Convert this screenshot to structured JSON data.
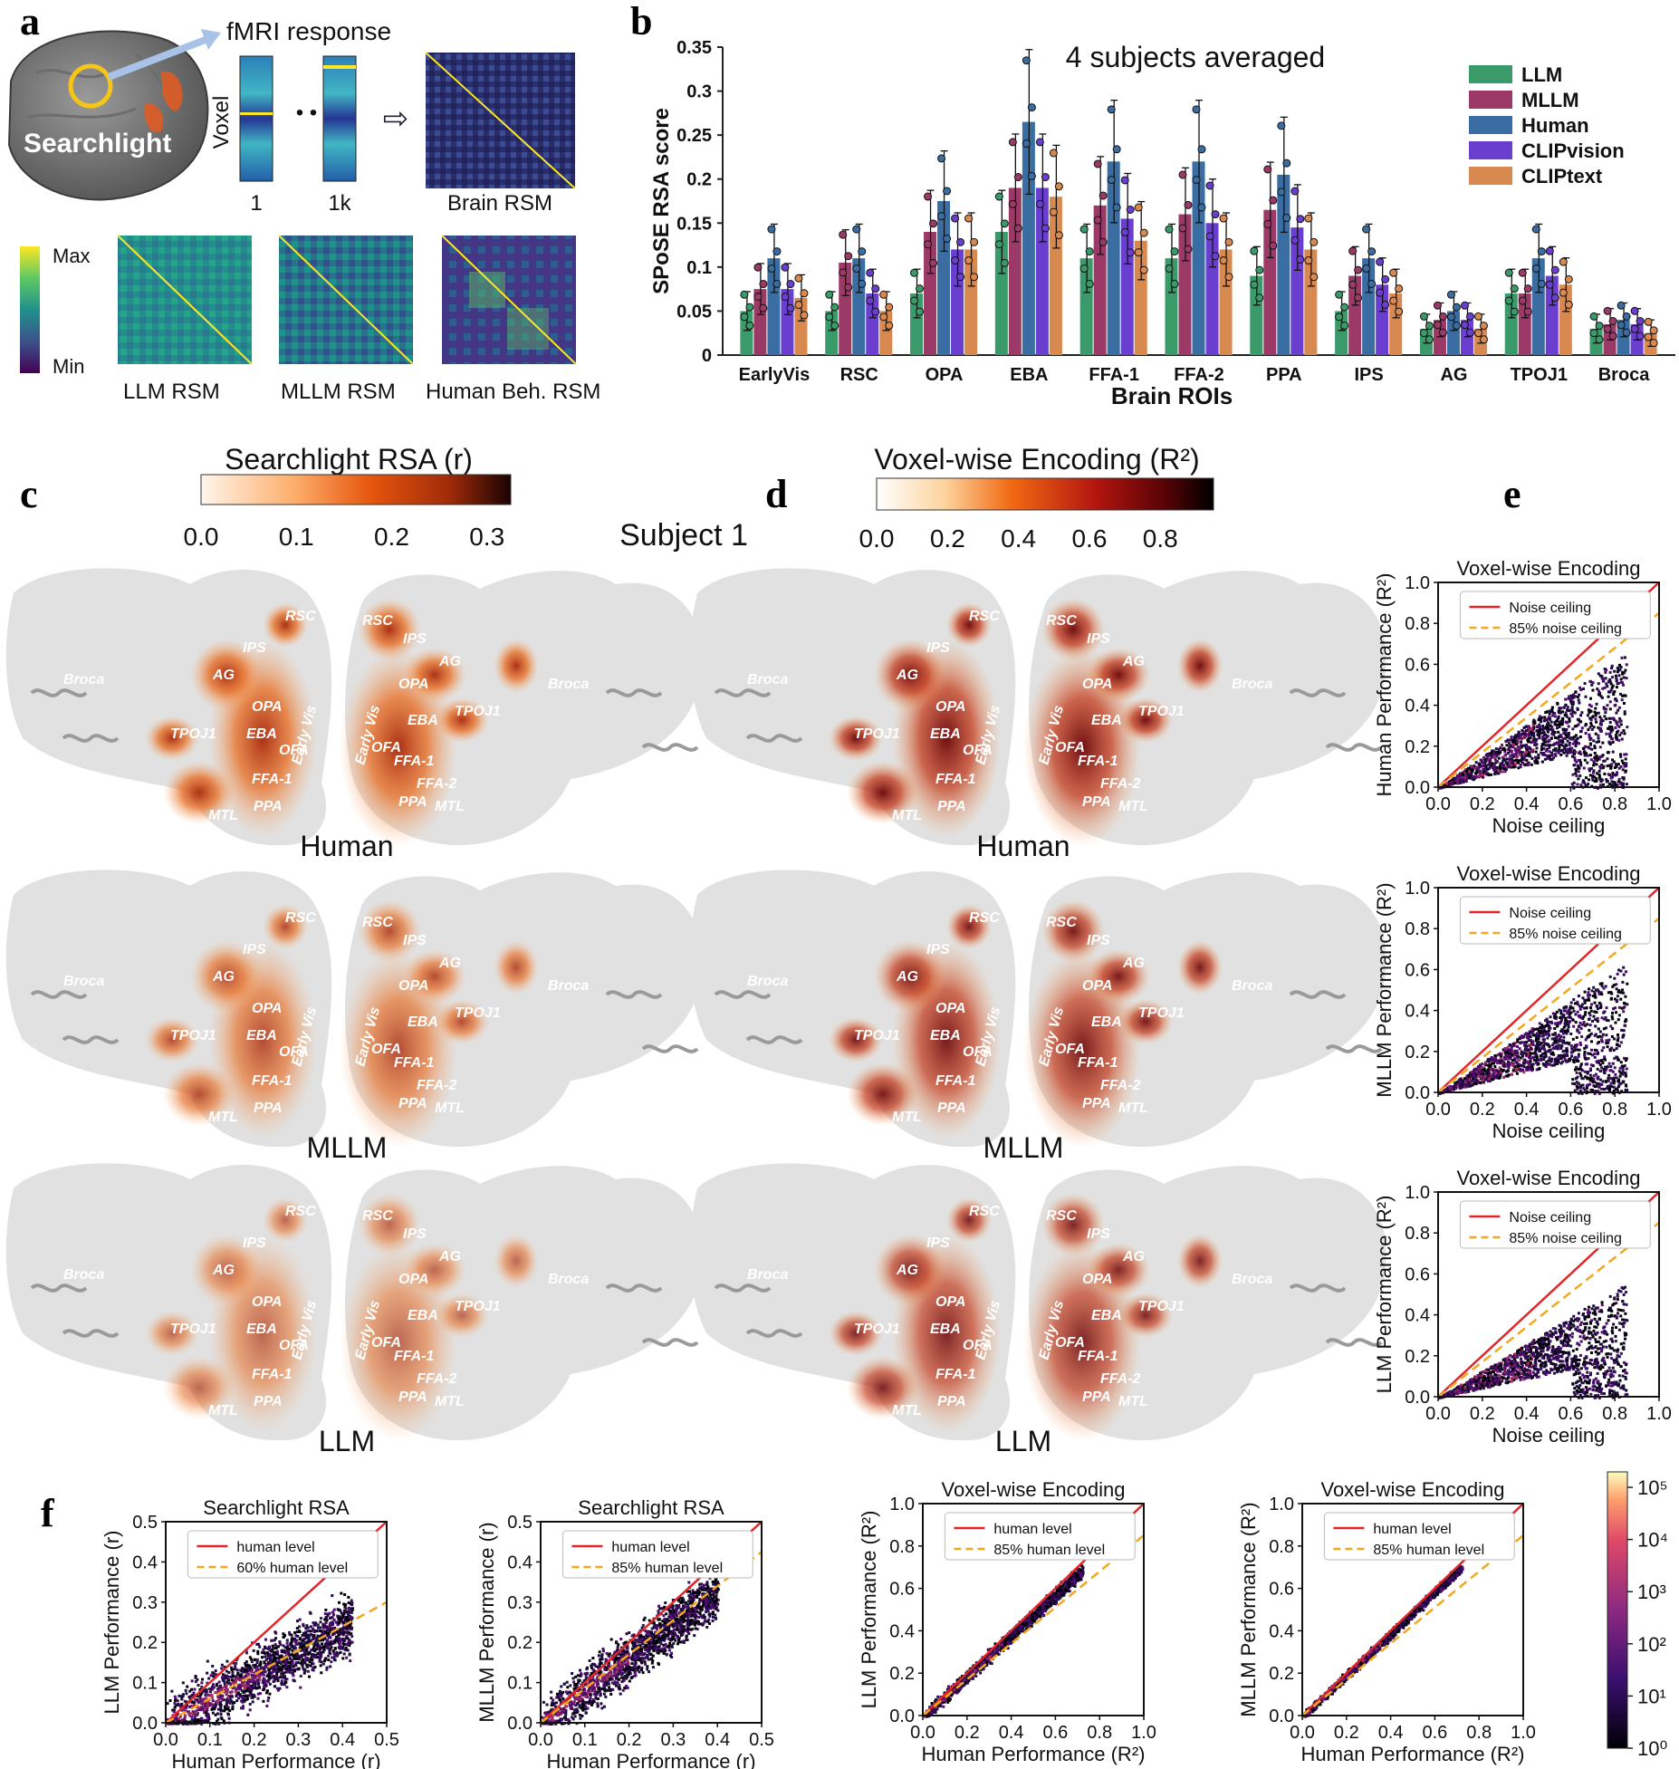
{
  "panels": {
    "a": {
      "letter": "a",
      "fmri_label": "fMRI response",
      "searchlight_label": "Searchlight",
      "voxel_label": "Voxel",
      "col_first": "1",
      "col_last": "1k",
      "dots": "• • •",
      "arrow": "⇨",
      "brain_rsm": "Brain RSM",
      "llm_rsm": "LLM RSM",
      "mllm_rsm": "MLLM RSM",
      "human_rsm": "Human Beh. RSM",
      "cbar_max": "Max",
      "cbar_min": "Min"
    },
    "b": {
      "letter": "b"
    },
    "c": {
      "letter": "c",
      "cbar_title": "Searchlight RSA (r)",
      "cbar_ticks": [
        "0.0",
        "0.1",
        "0.2",
        "0.3"
      ],
      "row_labels": [
        "Human",
        "MLLM",
        "LLM"
      ]
    },
    "subject_label": "Subject 1",
    "d": {
      "letter": "d",
      "cbar_title": "Voxel-wise Encoding (R²)",
      "cbar_ticks": [
        "0.0",
        "0.2",
        "0.4",
        "0.6",
        "0.8"
      ],
      "row_labels": [
        "Human",
        "MLLM",
        "LLM"
      ]
    },
    "e": {
      "letter": "e"
    },
    "f": {
      "letter": "f",
      "density_cbar_ticks": [
        "10⁵",
        "10⁴",
        "10³",
        "10²",
        "10¹",
        "10⁰"
      ]
    }
  },
  "brain_rois": {
    "left": [
      "Broca",
      "IPS",
      "RSC",
      "AG",
      "OPA",
      "TPOJ1",
      "EBA",
      "OFA",
      "Early Vis",
      "FFA-1",
      "MTL",
      "PPA"
    ],
    "right": [
      "RSC",
      "IPS",
      "AG",
      "OPA",
      "TPOJ1",
      "EBA",
      "Early Vis",
      "OFA",
      "FFA-1",
      "FFA-2",
      "PPA",
      "MTL",
      "Broca"
    ]
  },
  "colors": {
    "LLM": "#3a9a6a",
    "MLLM": "#9b3a66",
    "Human": "#3a6ea2",
    "CLIPvision": "#6a3fd0",
    "CLIPtext": "#d8894f",
    "noise_ceiling": "#e0262a",
    "dashed": "#f2a81e"
  },
  "chart_data": [
    {
      "type": "bar",
      "id": "b",
      "title": "4 subjects averaged",
      "xlabel": "Brain ROIs",
      "ylabel": "SPoSE RSA score",
      "ylim": [
        0,
        0.35
      ],
      "yticks": [
        "0",
        "0.05",
        "0.1",
        "0.15",
        "0.2",
        "0.25",
        "0.3",
        "0.35"
      ],
      "legend_position": "top-right",
      "categories": [
        "EarlyVis",
        "RSC",
        "OPA",
        "EBA",
        "FFA-1",
        "FFA-2",
        "PPA",
        "IPS",
        "AG",
        "TPOJ1",
        "Broca"
      ],
      "series": [
        {
          "name": "LLM",
          "values": [
            0.05,
            0.05,
            0.07,
            0.14,
            0.11,
            0.11,
            0.09,
            0.05,
            0.03,
            0.07,
            0.03
          ]
        },
        {
          "name": "MLLM",
          "values": [
            0.075,
            0.105,
            0.14,
            0.19,
            0.17,
            0.16,
            0.165,
            0.09,
            0.04,
            0.07,
            0.035
          ]
        },
        {
          "name": "Human",
          "values": [
            0.11,
            0.11,
            0.175,
            0.265,
            0.22,
            0.22,
            0.205,
            0.11,
            0.05,
            0.11,
            0.04
          ]
        },
        {
          "name": "CLIPvision",
          "values": [
            0.075,
            0.07,
            0.12,
            0.19,
            0.155,
            0.15,
            0.145,
            0.08,
            0.04,
            0.09,
            0.035
          ]
        },
        {
          "name": "CLIPtext",
          "values": [
            0.065,
            0.05,
            0.12,
            0.18,
            0.13,
            0.12,
            0.12,
            0.07,
            0.03,
            0.08,
            0.025
          ]
        }
      ]
    },
    {
      "type": "scatter",
      "id": "e1",
      "title": "Voxel-wise Encoding",
      "xlabel": "Noise ceiling",
      "ylabel": "Human Performance (R²)",
      "xlim": [
        0,
        1
      ],
      "ylim": [
        0,
        1
      ],
      "xticks": [
        "0.0",
        "0.2",
        "0.4",
        "0.6",
        "0.8",
        "1.0"
      ],
      "yticks": [
        "0.0",
        "0.2",
        "0.4",
        "0.6",
        "0.8",
        "1.0"
      ],
      "lines": [
        {
          "name": "Noise ceiling",
          "slope": 1.0
        },
        {
          "name": "85% noise ceiling",
          "slope": 0.85
        }
      ],
      "cloud": {
        "slope": 0.78,
        "spread": 0.12,
        "xmax": 0.85
      }
    },
    {
      "type": "scatter",
      "id": "e2",
      "title": "Voxel-wise Encoding",
      "xlabel": "Noise ceiling",
      "ylabel": "MLLM Performance (R²)",
      "xlim": [
        0,
        1
      ],
      "ylim": [
        0,
        1
      ],
      "xticks": [
        "0.0",
        "0.2",
        "0.4",
        "0.6",
        "0.8",
        "1.0"
      ],
      "yticks": [
        "0.0",
        "0.2",
        "0.4",
        "0.6",
        "0.8",
        "1.0"
      ],
      "lines": [
        {
          "name": "Noise ceiling",
          "slope": 1.0
        },
        {
          "name": "85% noise ceiling",
          "slope": 0.85
        }
      ],
      "cloud": {
        "slope": 0.76,
        "spread": 0.12,
        "xmax": 0.85
      }
    },
    {
      "type": "scatter",
      "id": "e3",
      "title": "Voxel-wise Encoding",
      "xlabel": "Noise ceiling",
      "ylabel": "LLM Performance (R²)",
      "xlim": [
        0,
        1
      ],
      "ylim": [
        0,
        1
      ],
      "xticks": [
        "0.0",
        "0.2",
        "0.4",
        "0.6",
        "0.8",
        "1.0"
      ],
      "yticks": [
        "0.0",
        "0.2",
        "0.4",
        "0.6",
        "0.8",
        "1.0"
      ],
      "lines": [
        {
          "name": "Noise ceiling",
          "slope": 1.0
        },
        {
          "name": "85% noise ceiling",
          "slope": 0.85
        }
      ],
      "cloud": {
        "slope": 0.66,
        "spread": 0.12,
        "xmax": 0.85
      }
    },
    {
      "type": "scatter",
      "id": "f1",
      "title": "Searchlight RSA",
      "xlabel": "Human Performance (r)",
      "ylabel": "LLM Performance (r)",
      "xlim": [
        0,
        0.5
      ],
      "ylim": [
        0,
        0.5
      ],
      "xticks": [
        "0.0",
        "0.1",
        "0.2",
        "0.3",
        "0.4",
        "0.5"
      ],
      "yticks": [
        "0.0",
        "0.1",
        "0.2",
        "0.3",
        "0.4",
        "0.5"
      ],
      "lines": [
        {
          "name": "human level",
          "slope": 1.0
        },
        {
          "name": "60% human level",
          "slope": 0.6
        }
      ],
      "cloud": {
        "slope": 0.6,
        "spread": 0.035,
        "xmax": 0.42
      }
    },
    {
      "type": "scatter",
      "id": "f2",
      "title": "Searchlight RSA",
      "xlabel": "Human Performance (r)",
      "ylabel": "MLLM Performance (r)",
      "xlim": [
        0,
        0.5
      ],
      "ylim": [
        0,
        0.5
      ],
      "xticks": [
        "0.0",
        "0.1",
        "0.2",
        "0.3",
        "0.4",
        "0.5"
      ],
      "yticks": [
        "0.0",
        "0.1",
        "0.2",
        "0.3",
        "0.4",
        "0.5"
      ],
      "lines": [
        {
          "name": "human level",
          "slope": 1.0
        },
        {
          "name": "85% human level",
          "slope": 0.85
        }
      ],
      "cloud": {
        "slope": 0.83,
        "spread": 0.03,
        "xmax": 0.4
      }
    },
    {
      "type": "scatter",
      "id": "f3",
      "title": "Voxel-wise Encoding",
      "xlabel": "Human Performance (R²)",
      "ylabel": "LLM Performance (R²)",
      "xlim": [
        0,
        1
      ],
      "ylim": [
        0,
        1
      ],
      "xticks": [
        "0.0",
        "0.2",
        "0.4",
        "0.6",
        "0.8",
        "1.0"
      ],
      "yticks": [
        "0.0",
        "0.2",
        "0.4",
        "0.6",
        "0.8",
        "1.0"
      ],
      "lines": [
        {
          "name": "human level",
          "slope": 1.0
        },
        {
          "name": "85% human level",
          "slope": 0.85
        }
      ],
      "cloud": {
        "slope": 0.96,
        "spread": 0.015,
        "xmax": 0.72
      }
    },
    {
      "type": "scatter",
      "id": "f4",
      "title": "Voxel-wise Encoding",
      "xlabel": "Human Performance (R²)",
      "ylabel": "MLLM Performance (R²)",
      "xlim": [
        0,
        1
      ],
      "ylim": [
        0,
        1
      ],
      "xticks": [
        "0.0",
        "0.2",
        "0.4",
        "0.6",
        "0.8",
        "1.0"
      ],
      "yticks": [
        "0.0",
        "0.2",
        "0.4",
        "0.6",
        "0.8",
        "1.0"
      ],
      "lines": [
        {
          "name": "human level",
          "slope": 1.0
        },
        {
          "name": "85% human level",
          "slope": 0.85
        }
      ],
      "cloud": {
        "slope": 0.98,
        "spread": 0.01,
        "xmax": 0.72
      }
    }
  ]
}
